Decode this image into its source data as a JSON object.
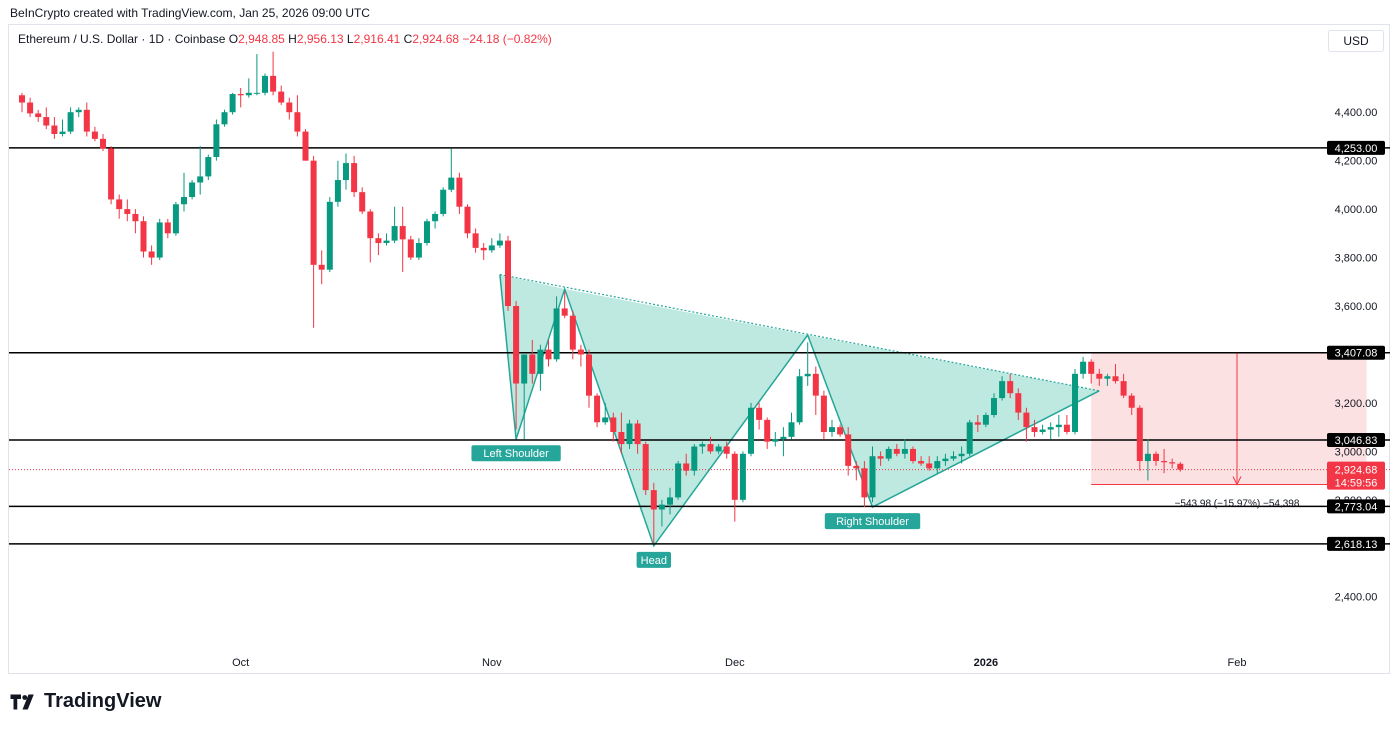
{
  "credit": "BeInCrypto created with TradingView.com, Jan 25, 2026 09:00 UTC",
  "header": {
    "symbol": "Ethereum / U.S. Dollar · 1D · Coinbase",
    "open_label": "O",
    "open": "2,948.85",
    "high_label": "H",
    "high": "2,956.13",
    "low_label": "L",
    "low": "2,916.41",
    "close_label": "C",
    "close": "2,924.68",
    "change": "−24.18 (−0.82%)"
  },
  "currency_button": "USD",
  "brand": "TradingView",
  "colors": {
    "up": "#089981",
    "down": "#f23645",
    "pattern_fill": "#b2e5da",
    "pattern_line": "#26a69a",
    "target_fill": "#fcdcdd",
    "target_line": "#f23645",
    "level_line": "#000000"
  },
  "chart_data": {
    "type": "candlestick",
    "symbol": "Ethereum / U.S. Dollar",
    "interval": "1D",
    "exchange": "Coinbase",
    "ylim": [
      2180,
      4760
    ],
    "yticks": [
      2400,
      2600,
      2800,
      3000,
      3200,
      3400,
      3600,
      3800,
      4000,
      4200,
      4400
    ],
    "ytick_labels": [
      "2,400.00",
      "",
      "2,800.00",
      "3,000.00",
      "3,200.00",
      "",
      "3,600.00",
      "3,800.00",
      "4,000.00",
      "4,200.00",
      "4,400.00"
    ],
    "xlabels": [
      {
        "label": "Oct",
        "date": "2025-10-01",
        "bold": false
      },
      {
        "label": "Nov",
        "date": "2025-11-01",
        "bold": false
      },
      {
        "label": "Dec",
        "date": "2025-12-01",
        "bold": false
      },
      {
        "label": "2026",
        "date": "2026-01-01",
        "bold": true
      },
      {
        "label": "Feb",
        "date": "2026-02-01",
        "bold": false
      }
    ],
    "xrange": [
      "2025-09-04",
      "2026-02-25"
    ],
    "candles": [
      [
        "2025-09-04",
        4470,
        4480,
        4400,
        4440
      ],
      [
        "2025-09-05",
        4440,
        4460,
        4380,
        4395
      ],
      [
        "2025-09-06",
        4395,
        4410,
        4360,
        4380
      ],
      [
        "2025-09-07",
        4380,
        4420,
        4330,
        4345
      ],
      [
        "2025-09-08",
        4345,
        4380,
        4290,
        4310
      ],
      [
        "2025-09-09",
        4310,
        4370,
        4300,
        4320
      ],
      [
        "2025-09-10",
        4320,
        4420,
        4310,
        4400
      ],
      [
        "2025-09-11",
        4400,
        4420,
        4380,
        4410
      ],
      [
        "2025-09-12",
        4410,
        4440,
        4300,
        4320
      ],
      [
        "2025-09-13",
        4320,
        4340,
        4280,
        4290
      ],
      [
        "2025-09-14",
        4290,
        4310,
        4240,
        4250
      ],
      [
        "2025-09-15",
        4250,
        4260,
        4020,
        4040
      ],
      [
        "2025-09-16",
        4040,
        4060,
        3960,
        4000
      ],
      [
        "2025-09-17",
        4000,
        4040,
        3950,
        3980
      ],
      [
        "2025-09-18",
        3980,
        4000,
        3900,
        3950
      ],
      [
        "2025-09-19",
        3950,
        3970,
        3800,
        3825
      ],
      [
        "2025-09-20",
        3825,
        3850,
        3770,
        3800
      ],
      [
        "2025-09-21",
        3800,
        3960,
        3790,
        3945
      ],
      [
        "2025-09-22",
        3945,
        3960,
        3880,
        3900
      ],
      [
        "2025-09-23",
        3900,
        4030,
        3890,
        4020
      ],
      [
        "2025-09-24",
        4020,
        4150,
        3990,
        4050
      ],
      [
        "2025-09-25",
        4050,
        4120,
        4040,
        4110
      ],
      [
        "2025-09-26",
        4110,
        4260,
        4060,
        4135
      ],
      [
        "2025-09-27",
        4135,
        4225,
        4120,
        4215
      ],
      [
        "2025-09-28",
        4215,
        4370,
        4200,
        4350
      ],
      [
        "2025-09-29",
        4350,
        4410,
        4340,
        4400
      ],
      [
        "2025-09-30",
        4400,
        4480,
        4390,
        4475
      ],
      [
        "2025-10-01",
        4475,
        4500,
        4420,
        4470
      ],
      [
        "2025-10-02",
        4470,
        4540,
        4460,
        4480
      ],
      [
        "2025-10-03",
        4480,
        4640,
        4470,
        4480
      ],
      [
        "2025-10-04",
        4480,
        4560,
        4470,
        4550
      ],
      [
        "2025-10-05",
        4550,
        4650,
        4470,
        4485
      ],
      [
        "2025-10-06",
        4485,
        4510,
        4430,
        4440
      ],
      [
        "2025-10-07",
        4440,
        4460,
        4370,
        4400
      ],
      [
        "2025-10-08",
        4400,
        4470,
        4300,
        4320
      ],
      [
        "2025-10-09",
        4320,
        4330,
        4200,
        4200
      ],
      [
        "2025-10-10",
        4200,
        4220,
        3510,
        3770
      ],
      [
        "2025-10-11",
        3770,
        3830,
        3690,
        3750
      ],
      [
        "2025-10-12",
        3750,
        4050,
        3740,
        4030
      ],
      [
        "2025-10-13",
        4030,
        4200,
        4010,
        4120
      ],
      [
        "2025-10-14",
        4120,
        4230,
        4080,
        4190
      ],
      [
        "2025-10-15",
        4190,
        4220,
        4050,
        4070
      ],
      [
        "2025-10-16",
        4070,
        4090,
        3980,
        3990
      ],
      [
        "2025-10-17",
        3990,
        4000,
        3780,
        3880
      ],
      [
        "2025-10-18",
        3880,
        3900,
        3810,
        3860
      ],
      [
        "2025-10-19",
        3860,
        3900,
        3850,
        3870
      ],
      [
        "2025-10-20",
        3870,
        4010,
        3860,
        3930
      ],
      [
        "2025-10-21",
        3930,
        4010,
        3740,
        3875
      ],
      [
        "2025-10-22",
        3875,
        3890,
        3790,
        3800
      ],
      [
        "2025-10-23",
        3800,
        3880,
        3790,
        3860
      ],
      [
        "2025-10-24",
        3860,
        3960,
        3850,
        3950
      ],
      [
        "2025-10-25",
        3950,
        3990,
        3920,
        3980
      ],
      [
        "2025-10-26",
        3980,
        4090,
        3970,
        4080
      ],
      [
        "2025-10-27",
        4080,
        4250,
        4070,
        4130
      ],
      [
        "2025-10-28",
        4130,
        4150,
        3980,
        4010
      ],
      [
        "2025-10-29",
        4010,
        4020,
        3880,
        3900
      ],
      [
        "2025-10-30",
        3900,
        3920,
        3820,
        3840
      ],
      [
        "2025-10-31",
        3840,
        3860,
        3790,
        3830
      ],
      [
        "2025-11-01",
        3830,
        3880,
        3820,
        3850
      ],
      [
        "2025-11-02",
        3850,
        3900,
        3840,
        3870
      ],
      [
        "2025-11-03",
        3870,
        3890,
        3580,
        3600
      ],
      [
        "2025-11-04",
        3600,
        3620,
        3090,
        3280
      ],
      [
        "2025-11-05",
        3280,
        3390,
        3050,
        3400
      ],
      [
        "2025-11-06",
        3400,
        3460,
        3280,
        3320
      ],
      [
        "2025-11-07",
        3320,
        3440,
        3250,
        3420
      ],
      [
        "2025-11-08",
        3420,
        3460,
        3350,
        3380
      ],
      [
        "2025-11-09",
        3380,
        3640,
        3370,
        3590
      ],
      [
        "2025-11-10",
        3590,
        3660,
        3550,
        3560
      ],
      [
        "2025-11-11",
        3560,
        3580,
        3380,
        3420
      ],
      [
        "2025-11-12",
        3420,
        3440,
        3350,
        3400
      ],
      [
        "2025-11-13",
        3400,
        3420,
        3180,
        3230
      ],
      [
        "2025-11-14",
        3230,
        3240,
        3100,
        3120
      ],
      [
        "2025-11-15",
        3120,
        3200,
        3110,
        3140
      ],
      [
        "2025-11-16",
        3140,
        3160,
        3040,
        3080
      ],
      [
        "2025-11-17",
        3080,
        3160,
        2990,
        3030
      ],
      [
        "2025-11-18",
        3030,
        3130,
        3010,
        3115
      ],
      [
        "2025-11-19",
        3115,
        3130,
        2990,
        3030
      ],
      [
        "2025-11-20",
        3030,
        3040,
        2820,
        2840
      ],
      [
        "2025-11-21",
        2840,
        2870,
        2620,
        2760
      ],
      [
        "2025-11-22",
        2760,
        2800,
        2690,
        2780
      ],
      [
        "2025-11-23",
        2780,
        2850,
        2740,
        2810
      ],
      [
        "2025-11-24",
        2810,
        2960,
        2800,
        2950
      ],
      [
        "2025-11-25",
        2950,
        2990,
        2900,
        2920
      ],
      [
        "2025-11-26",
        2920,
        3030,
        2900,
        3020
      ],
      [
        "2025-11-27",
        3020,
        3040,
        2990,
        3030
      ],
      [
        "2025-11-28",
        3030,
        3060,
        2990,
        3000
      ],
      [
        "2025-11-29",
        3000,
        3030,
        2990,
        3020
      ],
      [
        "2025-11-30",
        3020,
        3040,
        2970,
        2990
      ],
      [
        "2025-12-01",
        2990,
        3000,
        2710,
        2800
      ],
      [
        "2025-12-02",
        2800,
        3000,
        2790,
        2990
      ],
      [
        "2025-12-03",
        2990,
        3200,
        2980,
        3180
      ],
      [
        "2025-12-04",
        3180,
        3200,
        3090,
        3130
      ],
      [
        "2025-12-05",
        3130,
        3140,
        3010,
        3040
      ],
      [
        "2025-12-06",
        3040,
        3080,
        3020,
        3050
      ],
      [
        "2025-12-07",
        3050,
        3100,
        2980,
        3060
      ],
      [
        "2025-12-08",
        3060,
        3160,
        3050,
        3120
      ],
      [
        "2025-12-09",
        3120,
        3340,
        3110,
        3310
      ],
      [
        "2025-12-10",
        3310,
        3450,
        3270,
        3320
      ],
      [
        "2025-12-11",
        3320,
        3350,
        3150,
        3230
      ],
      [
        "2025-12-12",
        3230,
        3250,
        3050,
        3080
      ],
      [
        "2025-12-13",
        3080,
        3130,
        3060,
        3100
      ],
      [
        "2025-12-14",
        3100,
        3110,
        3060,
        3070
      ],
      [
        "2025-12-15",
        3070,
        3100,
        2900,
        2940
      ],
      [
        "2025-12-16",
        2940,
        2960,
        2880,
        2930
      ],
      [
        "2025-12-17",
        2930,
        2960,
        2770,
        2810
      ],
      [
        "2025-12-18",
        2810,
        3020,
        2790,
        2980
      ],
      [
        "2025-12-19",
        2980,
        3000,
        2940,
        2970
      ],
      [
        "2025-12-20",
        2970,
        3020,
        2960,
        3010
      ],
      [
        "2025-12-21",
        3010,
        3030,
        2980,
        2990
      ],
      [
        "2025-12-22",
        2990,
        3050,
        2970,
        3010
      ],
      [
        "2025-12-23",
        3010,
        3020,
        2950,
        2960
      ],
      [
        "2025-12-24",
        2960,
        2980,
        2940,
        2950
      ],
      [
        "2025-12-25",
        2950,
        2980,
        2920,
        2930
      ],
      [
        "2025-12-26",
        2930,
        2980,
        2910,
        2960
      ],
      [
        "2025-12-27",
        2960,
        2990,
        2940,
        2970
      ],
      [
        "2025-12-28",
        2970,
        3000,
        2960,
        2980
      ],
      [
        "2025-12-29",
        2980,
        3020,
        2950,
        2990
      ],
      [
        "2025-12-30",
        2990,
        3130,
        2980,
        3120
      ],
      [
        "2025-12-31",
        3120,
        3150,
        3080,
        3110
      ],
      [
        "2026-01-01",
        3110,
        3160,
        3100,
        3150
      ],
      [
        "2026-01-02",
        3150,
        3240,
        3140,
        3220
      ],
      [
        "2026-01-03",
        3220,
        3310,
        3210,
        3290
      ],
      [
        "2026-01-04",
        3290,
        3320,
        3220,
        3240
      ],
      [
        "2026-01-05",
        3240,
        3260,
        3130,
        3160
      ],
      [
        "2026-01-06",
        3160,
        3180,
        3040,
        3100
      ],
      [
        "2026-01-07",
        3100,
        3130,
        3060,
        3080
      ],
      [
        "2026-01-08",
        3080,
        3110,
        3070,
        3090
      ],
      [
        "2026-01-09",
        3090,
        3120,
        3050,
        3100
      ],
      [
        "2026-01-10",
        3100,
        3150,
        3060,
        3110
      ],
      [
        "2026-01-11",
        3110,
        3150,
        3070,
        3080
      ],
      [
        "2026-01-12",
        3080,
        3340,
        3070,
        3320
      ],
      [
        "2026-01-13",
        3320,
        3390,
        3300,
        3370
      ],
      [
        "2026-01-14",
        3370,
        3380,
        3280,
        3320
      ],
      [
        "2026-01-15",
        3320,
        3340,
        3270,
        3300
      ],
      [
        "2026-01-16",
        3300,
        3320,
        3270,
        3310
      ],
      [
        "2026-01-17",
        3310,
        3360,
        3280,
        3290
      ],
      [
        "2026-01-18",
        3290,
        3320,
        3220,
        3230
      ],
      [
        "2026-01-19",
        3230,
        3240,
        3150,
        3180
      ],
      [
        "2026-01-20",
        3180,
        3190,
        2920,
        2960
      ],
      [
        "2026-01-21",
        2960,
        3050,
        2880,
        2990
      ],
      [
        "2026-01-22",
        2990,
        3000,
        2940,
        2960
      ],
      [
        "2026-01-23",
        2960,
        3010,
        2910,
        2955
      ],
      [
        "2026-01-24",
        2955,
        2970,
        2930,
        2950
      ],
      [
        "2026-01-25",
        2948.85,
        2956.13,
        2916.41,
        2924.68
      ]
    ],
    "levels": [
      {
        "value": 4253.0,
        "label": "4,253.00"
      },
      {
        "value": 3407.08,
        "label": "3,407.08"
      },
      {
        "value": 3046.83,
        "label": "3,046.83"
      },
      {
        "value": 2773.04,
        "label": "2,773.04"
      },
      {
        "value": 2618.13,
        "label": "2,618.13"
      }
    ],
    "last_price": {
      "value": 2924.68,
      "label": "2,924.68",
      "countdown": "14:59:56"
    },
    "pattern": {
      "name": "Head and shoulders",
      "points": [
        [
          "2025-11-02",
          3730
        ],
        [
          "2025-11-04",
          3050
        ],
        [
          "2025-11-10",
          3670
        ],
        [
          "2025-11-21",
          2610
        ],
        [
          "2025-12-10",
          3480
        ],
        [
          "2025-12-18",
          2770
        ],
        [
          "2026-01-15",
          3250
        ]
      ],
      "neckline": [
        [
          "2025-11-02",
          3730
        ],
        [
          "2026-01-15",
          3250
        ]
      ],
      "labels": [
        {
          "text": "Left Shoulder",
          "anchor": [
            "2025-11-04",
            3050
          ]
        },
        {
          "text": "Head",
          "anchor": [
            "2025-11-21",
            2610
          ]
        },
        {
          "text": "Right Shoulder",
          "anchor": [
            "2025-12-18",
            2770
          ]
        }
      ]
    },
    "target_zone": {
      "x_start": "2026-01-14",
      "x_end": "2026-02-17",
      "top": 3407.08,
      "bottom": 2863.1,
      "arrow_x": "2026-02-01",
      "label": "−543.98 (−15.97%) −54,398"
    }
  }
}
